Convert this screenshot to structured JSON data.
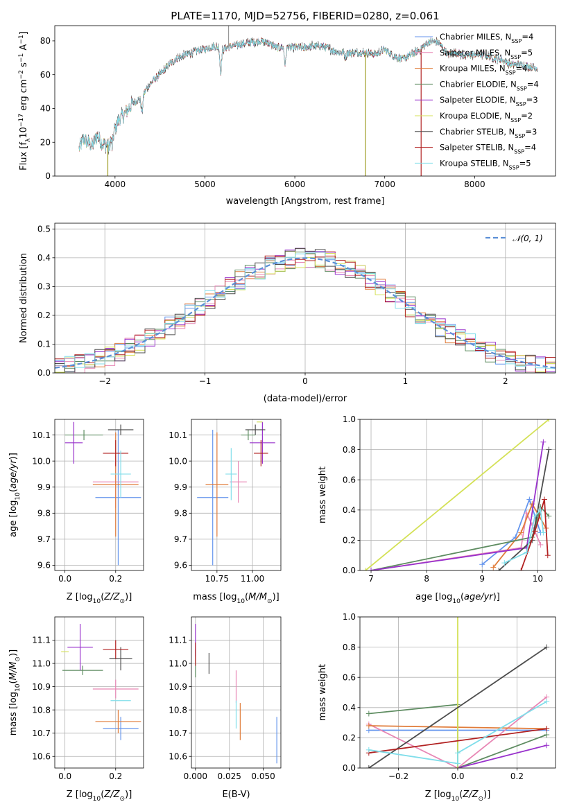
{
  "colors": {
    "chabrier_miles": "#6495ED",
    "salpeter_miles": "#E887B5",
    "kroupa_miles": "#E07B39",
    "chabrier_elodie": "#5E8C61",
    "salpeter_elodie": "#9932CC",
    "kroupa_elodie": "#D4E157",
    "chabrier_stelib": "#4D4D4D",
    "salpeter_stelib": "#B22222",
    "kroupa_stelib": "#80DEEA",
    "normal": "#5B8FD6",
    "grid": "#B0B0B0"
  },
  "chart_data": [
    {
      "id": "spectrum",
      "type": "line",
      "title": "PLATE=1170, MJD=52756, FIBERID=0280, z=0.061",
      "xlabel": "wavelength [Angstrom, rest frame]",
      "ylabel": "Flux [f_λ 10^-17 erg cm^-2 s^-1 A^-1]",
      "xlim": [
        3330,
        8900
      ],
      "ylim": [
        0,
        89
      ],
      "xticks": [
        "4000",
        "5000",
        "6000",
        "7000",
        "8000"
      ],
      "yticks": [
        "0",
        "20",
        "40",
        "60",
        "80"
      ],
      "grid": false,
      "legend_position": "top-right",
      "legend": [
        "Chabrier MILES, N_SSP=4",
        "Salpeter MILES, N_SSP=5",
        "Kroupa MILES, N_SSP=4",
        "Chabrier ELODIE, N_SSP=4",
        "Salpeter ELODIE, N_SSP=3",
        "Kroupa ELODIE, N_SSP=2",
        "Chabrier STELIB, N_SSP=3",
        "Salpeter STELIB, N_SSP=4",
        "Kroupa STELIB, N_SSP=5"
      ],
      "continuum": [
        [
          3600,
          16
        ],
        [
          3650,
          22
        ],
        [
          3700,
          20
        ],
        [
          3750,
          18
        ],
        [
          3800,
          24
        ],
        [
          3850,
          20
        ],
        [
          3900,
          18
        ],
        [
          3950,
          23
        ],
        [
          4000,
          28
        ],
        [
          4050,
          34
        ],
        [
          4100,
          36
        ],
        [
          4150,
          40
        ],
        [
          4200,
          43
        ],
        [
          4250,
          45
        ],
        [
          4300,
          46
        ],
        [
          4350,
          52
        ],
        [
          4400,
          55
        ],
        [
          4450,
          58
        ],
        [
          4500,
          60
        ],
        [
          4600,
          66
        ],
        [
          4700,
          70
        ],
        [
          4800,
          72
        ],
        [
          4900,
          74
        ],
        [
          5000,
          75
        ],
        [
          5100,
          77
        ],
        [
          5200,
          75
        ],
        [
          5300,
          77
        ],
        [
          5400,
          78
        ],
        [
          5500,
          79
        ],
        [
          5600,
          80
        ],
        [
          5700,
          79
        ],
        [
          5800,
          76
        ],
        [
          5900,
          76
        ],
        [
          6000,
          76
        ],
        [
          6100,
          76
        ],
        [
          6200,
          77
        ],
        [
          6300,
          77
        ],
        [
          6400,
          75
        ],
        [
          6500,
          73
        ],
        [
          6600,
          73
        ],
        [
          6700,
          73
        ],
        [
          6800,
          73
        ],
        [
          6900,
          72
        ],
        [
          7000,
          75
        ],
        [
          7100,
          71
        ],
        [
          7200,
          69
        ],
        [
          7300,
          72
        ],
        [
          7400,
          75
        ],
        [
          7500,
          80
        ],
        [
          7600,
          79
        ],
        [
          7700,
          72
        ],
        [
          7800,
          73
        ],
        [
          7900,
          71
        ],
        [
          8000,
          72
        ],
        [
          8100,
          72
        ],
        [
          8200,
          70
        ],
        [
          8300,
          69
        ],
        [
          8400,
          66
        ],
        [
          8500,
          66
        ],
        [
          8600,
          65
        ],
        [
          8700,
          64
        ]
      ],
      "absorption_features": [
        [
          3934,
          5
        ],
        [
          3969,
          8
        ],
        [
          4300,
          8
        ],
        [
          5175,
          14
        ],
        [
          5893,
          10
        ],
        [
          6563,
          3
        ]
      ],
      "spikes": [
        [
          3920,
          0
        ],
        [
          5263,
          89
        ],
        [
          6785,
          0
        ],
        [
          7405,
          0
        ]
      ]
    },
    {
      "id": "residuals",
      "type": "histogram",
      "xlabel": "(data-model)/error",
      "ylabel": "Normed distribution",
      "xlim": [
        -2.5,
        2.5
      ],
      "ylim": [
        0,
        0.52
      ],
      "xticks": [
        "−2",
        "−1",
        "0",
        "1",
        "2"
      ],
      "yticks": [
        "0.0",
        "0.1",
        "0.2",
        "0.3",
        "0.4",
        "0.5"
      ],
      "grid": true,
      "legend_position": "top-right",
      "legend": [
        "𝒩(0, 1)"
      ],
      "bin_width": 0.1
    },
    {
      "id": "age_vs_Z",
      "type": "scatter",
      "xlabel": "Z [log10(Z/Z☉)]",
      "ylabel": "age  [log10(age/yr)]",
      "xlim": [
        -0.04,
        0.31
      ],
      "ylim": [
        9.58,
        10.16
      ],
      "xticks": [
        "0.0",
        "0.2"
      ],
      "yticks": [
        "9.6",
        "9.7",
        "9.8",
        "9.9",
        "10.0",
        "10.1"
      ],
      "grid": true,
      "points": [
        {
          "x": 0.21,
          "y": 9.86,
          "xerr": 0.09,
          "yerr": 0.26
        },
        {
          "x": 0.2,
          "y": 9.92,
          "xerr": 0.09,
          "yerr": 0.1
        },
        {
          "x": 0.2,
          "y": 9.91,
          "xerr": 0.09,
          "yerr": 0.2
        },
        {
          "x": 0.075,
          "y": 10.1,
          "xerr": 0.075,
          "yerr": 0.02
        },
        {
          "x": 0.035,
          "y": 10.07,
          "xerr": 0.035,
          "yerr": 0.08
        },
        {
          "x": 0.0,
          "y": 10.15,
          "xerr": 0.0,
          "yerr": 0.0
        },
        {
          "x": 0.22,
          "y": 10.12,
          "xerr": 0.05,
          "yerr": 0.02
        },
        {
          "x": 0.2,
          "y": 10.03,
          "xerr": 0.05,
          "yerr": 0.05
        },
        {
          "x": 0.22,
          "y": 9.95,
          "xerr": 0.04,
          "yerr": 0.09
        }
      ]
    },
    {
      "id": "age_vs_mass",
      "type": "scatter",
      "xlabel": "mass [log10(M/M☉)]",
      "ylabel": "",
      "xlim": [
        10.57,
        11.2
      ],
      "ylim": [
        9.58,
        10.16
      ],
      "xticks": [
        "10.75",
        "11.00"
      ],
      "yticks": [
        "9.6",
        "9.7",
        "9.8",
        "9.9",
        "10.0",
        "10.1"
      ],
      "grid": true,
      "points": [
        {
          "x": 10.72,
          "y": 9.86,
          "xerr": 0.11,
          "yerr": 0.26
        },
        {
          "x": 10.9,
          "y": 9.92,
          "xerr": 0.06,
          "yerr": 0.08
        },
        {
          "x": 10.75,
          "y": 9.91,
          "xerr": 0.08,
          "yerr": 0.2
        },
        {
          "x": 10.97,
          "y": 10.1,
          "xerr": 0.05,
          "yerr": 0.02
        },
        {
          "x": 11.07,
          "y": 10.07,
          "xerr": 0.09,
          "yerr": 0.08
        },
        {
          "x": 11.05,
          "y": 10.15,
          "xerr": 0.02,
          "yerr": 0.0
        },
        {
          "x": 11.02,
          "y": 10.12,
          "xerr": 0.07,
          "yerr": 0.02
        },
        {
          "x": 11.06,
          "y": 10.03,
          "xerr": 0.05,
          "yerr": 0.05
        },
        {
          "x": 10.85,
          "y": 9.95,
          "xerr": 0.04,
          "yerr": 0.1
        }
      ]
    },
    {
      "id": "weight_vs_age",
      "type": "line",
      "xlabel": "age  [log10(age/yr)]",
      "ylabel": "mass weight",
      "xlim": [
        6.8,
        10.32
      ],
      "ylim": [
        0,
        1.0
      ],
      "xticks": [
        "7",
        "8",
        "9",
        "10"
      ],
      "yticks": [
        "0.0",
        "0.2",
        "0.4",
        "0.6",
        "0.8",
        "1.0"
      ],
      "grid": true,
      "series": [
        {
          "points": [
            [
              9.0,
              0.04
            ],
            [
              9.6,
              0.22
            ],
            [
              9.85,
              0.47
            ],
            [
              10.05,
              0.25
            ]
          ]
        },
        {
          "points": [
            [
              7.0,
              0.0
            ],
            [
              9.7,
              0.15
            ],
            [
              9.8,
              0.38
            ],
            [
              9.9,
              0.3
            ],
            [
              10.05,
              0.17
            ]
          ]
        },
        {
          "points": [
            [
              9.2,
              0.02
            ],
            [
              9.7,
              0.25
            ],
            [
              9.9,
              0.44
            ],
            [
              10.15,
              0.28
            ]
          ]
        },
        {
          "points": [
            [
              7.0,
              0.0
            ],
            [
              9.9,
              0.22
            ],
            [
              10.05,
              0.42
            ],
            [
              10.2,
              0.36
            ]
          ]
        },
        {
          "points": [
            [
              7.0,
              0.0
            ],
            [
              9.8,
              0.15
            ],
            [
              10.1,
              0.85
            ]
          ]
        },
        {
          "points": [
            [
              6.9,
              0.0
            ],
            [
              10.2,
              1.0
            ]
          ]
        },
        {
          "points": [
            [
              9.3,
              0.0
            ],
            [
              9.9,
              0.2
            ],
            [
              10.2,
              0.8
            ]
          ]
        },
        {
          "points": [
            [
              9.7,
              0.0
            ],
            [
              9.95,
              0.26
            ],
            [
              10.12,
              0.47
            ],
            [
              10.18,
              0.1
            ]
          ]
        },
        {
          "points": [
            [
              9.4,
              0.05
            ],
            [
              9.8,
              0.12
            ],
            [
              9.95,
              0.36
            ],
            [
              10.05,
              0.4
            ],
            [
              10.1,
              0.25
            ]
          ]
        }
      ]
    },
    {
      "id": "mass_vs_Z",
      "type": "scatter",
      "xlabel": "Z [log10(Z/Z☉)]",
      "ylabel": "mass [log10(M/M☉)]",
      "xlim": [
        -0.04,
        0.31
      ],
      "ylim": [
        10.55,
        11.2
      ],
      "xticks": [
        "0.0",
        "0.2"
      ],
      "yticks": [
        "10.6",
        "10.7",
        "10.8",
        "10.9",
        "11.0",
        "11.1"
      ],
      "grid": true,
      "points": [
        {
          "x": 0.22,
          "y": 10.72,
          "xerr": 0.07,
          "yerr": 0.05
        },
        {
          "x": 0.2,
          "y": 10.89,
          "xerr": 0.09,
          "yerr": 0.04
        },
        {
          "x": 0.21,
          "y": 10.75,
          "xerr": 0.09,
          "yerr": 0.05
        },
        {
          "x": 0.07,
          "y": 10.97,
          "xerr": 0.08,
          "yerr": 0.02
        },
        {
          "x": 0.06,
          "y": 11.07,
          "xerr": 0.05,
          "yerr": 0.1
        },
        {
          "x": 0.0,
          "y": 11.05,
          "xerr": 0.015,
          "yerr": 0.0
        },
        {
          "x": 0.22,
          "y": 11.02,
          "xerr": 0.045,
          "yerr": 0.05
        },
        {
          "x": 0.2,
          "y": 11.06,
          "xerr": 0.05,
          "yerr": 0.04
        },
        {
          "x": 0.22,
          "y": 10.84,
          "xerr": 0.04,
          "yerr": 0.0
        }
      ]
    },
    {
      "id": "mass_vs_ebv",
      "type": "scatter",
      "xlabel": "E(B-V)",
      "ylabel": "",
      "xlim": [
        -0.003,
        0.063
      ],
      "ylim": [
        10.55,
        11.2
      ],
      "xticks": [
        "0.000",
        "0.025",
        "0.050"
      ],
      "yticks": [
        "10.6",
        "10.7",
        "10.8",
        "10.9",
        "11.0",
        "11.1"
      ],
      "grid": true,
      "points": [
        {
          "x": 0.06,
          "y": 10.67,
          "xerr": 0,
          "yerr": 0.1
        },
        {
          "x": 0.03,
          "y": 10.9,
          "xerr": 0,
          "yerr": 0.07
        },
        {
          "x": 0.033,
          "y": 10.75,
          "xerr": 0,
          "yerr": 0.08
        },
        {
          "x": 0.0,
          "y": 11.0,
          "xerr": 0,
          "yerr": 0.06
        },
        {
          "x": 0.0,
          "y": 11.1,
          "xerr": 0,
          "yerr": 0.07
        },
        {
          "x": 0.0,
          "y": 11.05,
          "xerr": 0,
          "yerr": 0.0
        },
        {
          "x": 0.01,
          "y": 11.0,
          "xerr": 0,
          "yerr": 0.045
        },
        {
          "x": 0.0,
          "y": 11.04,
          "xerr": 0,
          "yerr": 0.05
        },
        {
          "x": 0.03,
          "y": 10.78,
          "xerr": 0,
          "yerr": 0.06
        }
      ]
    },
    {
      "id": "weight_vs_Z",
      "type": "line",
      "xlabel": "Z [log10(Z/Z☉)]",
      "ylabel": "mass weight",
      "xlim": [
        -0.33,
        0.33
      ],
      "ylim": [
        0,
        1.0
      ],
      "xticks": [
        "−0.2",
        "0.0",
        "0.2"
      ],
      "yticks": [
        "0.0",
        "0.2",
        "0.4",
        "0.6",
        "0.8",
        "1.0"
      ],
      "grid": true,
      "series": [
        {
          "points": [
            [
              -0.3,
              0.25
            ],
            [
              0.0,
              0.25
            ],
            [
              0.3,
              0.25
            ]
          ]
        },
        {
          "points": [
            [
              -0.3,
              0.29
            ],
            [
              0.0,
              0.0
            ],
            [
              0.3,
              0.47
            ]
          ]
        },
        {
          "points": [
            [
              -0.3,
              0.28
            ],
            [
              0.3,
              0.26
            ]
          ]
        },
        {
          "points": [
            [
              -0.3,
              0.36
            ],
            [
              0.0,
              0.42
            ],
            [
              0.0,
              0.0
            ],
            [
              0.3,
              0.22
            ]
          ]
        },
        {
          "points": [
            [
              0.0,
              0.0
            ],
            [
              0.3,
              0.15
            ]
          ]
        },
        {
          "points": [
            [
              0.0,
              1.0
            ],
            [
              0.0,
              0.0
            ]
          ]
        },
        {
          "points": [
            [
              -0.3,
              0.0
            ],
            [
              0.3,
              0.8
            ]
          ]
        },
        {
          "points": [
            [
              -0.3,
              0.1
            ],
            [
              0.3,
              0.26
            ]
          ]
        },
        {
          "points": [
            [
              -0.3,
              0.12
            ],
            [
              0.0,
              0.03
            ],
            [
              0.0,
              0.1
            ],
            [
              0.3,
              0.44
            ]
          ]
        }
      ]
    }
  ]
}
